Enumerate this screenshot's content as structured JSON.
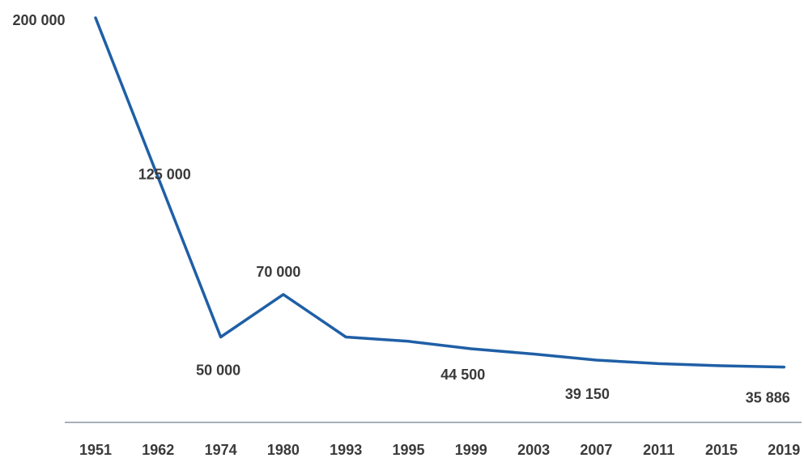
{
  "chart_data": {
    "type": "line",
    "title": "",
    "xlabel": "",
    "ylabel": "",
    "categories": [
      "1951",
      "1962",
      "1974",
      "1980",
      "1993",
      "1995",
      "1999",
      "2003",
      "2007",
      "2011",
      "2015",
      "2019"
    ],
    "values": [
      200000,
      125000,
      50000,
      70000,
      50000,
      48000,
      44500,
      42000,
      39150,
      37500,
      36500,
      35886
    ],
    "ylim": [
      0,
      200000
    ],
    "grid": false,
    "legend": "none",
    "line_color": "#1f5fa6",
    "axis_color": "#8a96a3",
    "data_labels": [
      {
        "index": 0,
        "text": "200 000"
      },
      {
        "index": 1,
        "text": "125 000"
      },
      {
        "index": 2,
        "text": "50 000"
      },
      {
        "index": 3,
        "text": "70 000"
      },
      {
        "index": 6,
        "text": "44 500"
      },
      {
        "index": 8,
        "text": "39 150"
      },
      {
        "index": 11,
        "text": "35 886"
      }
    ]
  }
}
